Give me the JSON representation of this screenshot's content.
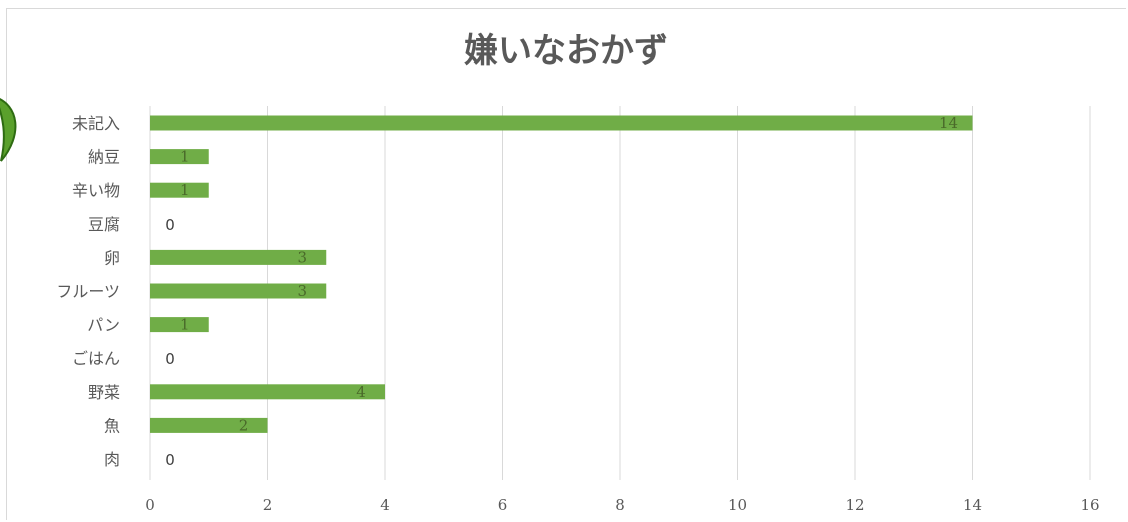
{
  "chart_data": {
    "type": "bar",
    "orientation": "horizontal",
    "title": "嫌いなおかず",
    "categories": [
      "未記入",
      "納豆",
      "辛い物",
      "豆腐",
      "卵",
      "フルーツ",
      "パン",
      "ごはん",
      "野菜",
      "魚",
      "肉"
    ],
    "values": [
      14,
      1,
      1,
      0,
      3,
      3,
      1,
      0,
      4,
      2,
      0
    ],
    "xlim": [
      0,
      16
    ],
    "xticks": [
      0,
      2,
      4,
      6,
      8,
      10,
      12,
      14,
      16
    ],
    "grid": "vertical",
    "legend": "none",
    "bar_color": "#70ad47"
  }
}
